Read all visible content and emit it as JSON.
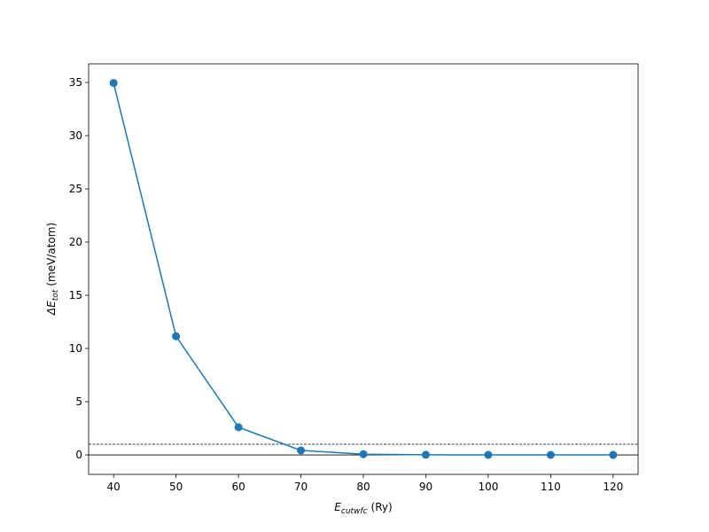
{
  "chart_data": {
    "type": "line",
    "x": [
      40,
      50,
      60,
      70,
      80,
      90,
      100,
      110,
      120
    ],
    "series": [
      {
        "color": "#1f77b4",
        "values": [
          34.95,
          11.15,
          2.6,
          0.42,
          0.07,
          0.01,
          0.0,
          0.0,
          0.0
        ]
      }
    ],
    "xlim": [
      36,
      124
    ],
    "xticks": [
      40,
      50,
      60,
      70,
      80,
      90,
      100,
      110,
      120
    ],
    "ylim": [
      -1.83,
      36.75
    ],
    "yticks": [
      0,
      5,
      10,
      15,
      20,
      25,
      30,
      35
    ],
    "xlabel": {
      "symbol": "E",
      "subscript": "cutwfc",
      "unit": "(Ry)"
    },
    "ylabel": {
      "symbol": "ΔE",
      "subscript": "tot",
      "unit": "(meV/atom)"
    },
    "hlines": [
      {
        "y": 0,
        "style": "solid"
      },
      {
        "y": 1,
        "style": "dashed"
      }
    ],
    "markers": true
  }
}
